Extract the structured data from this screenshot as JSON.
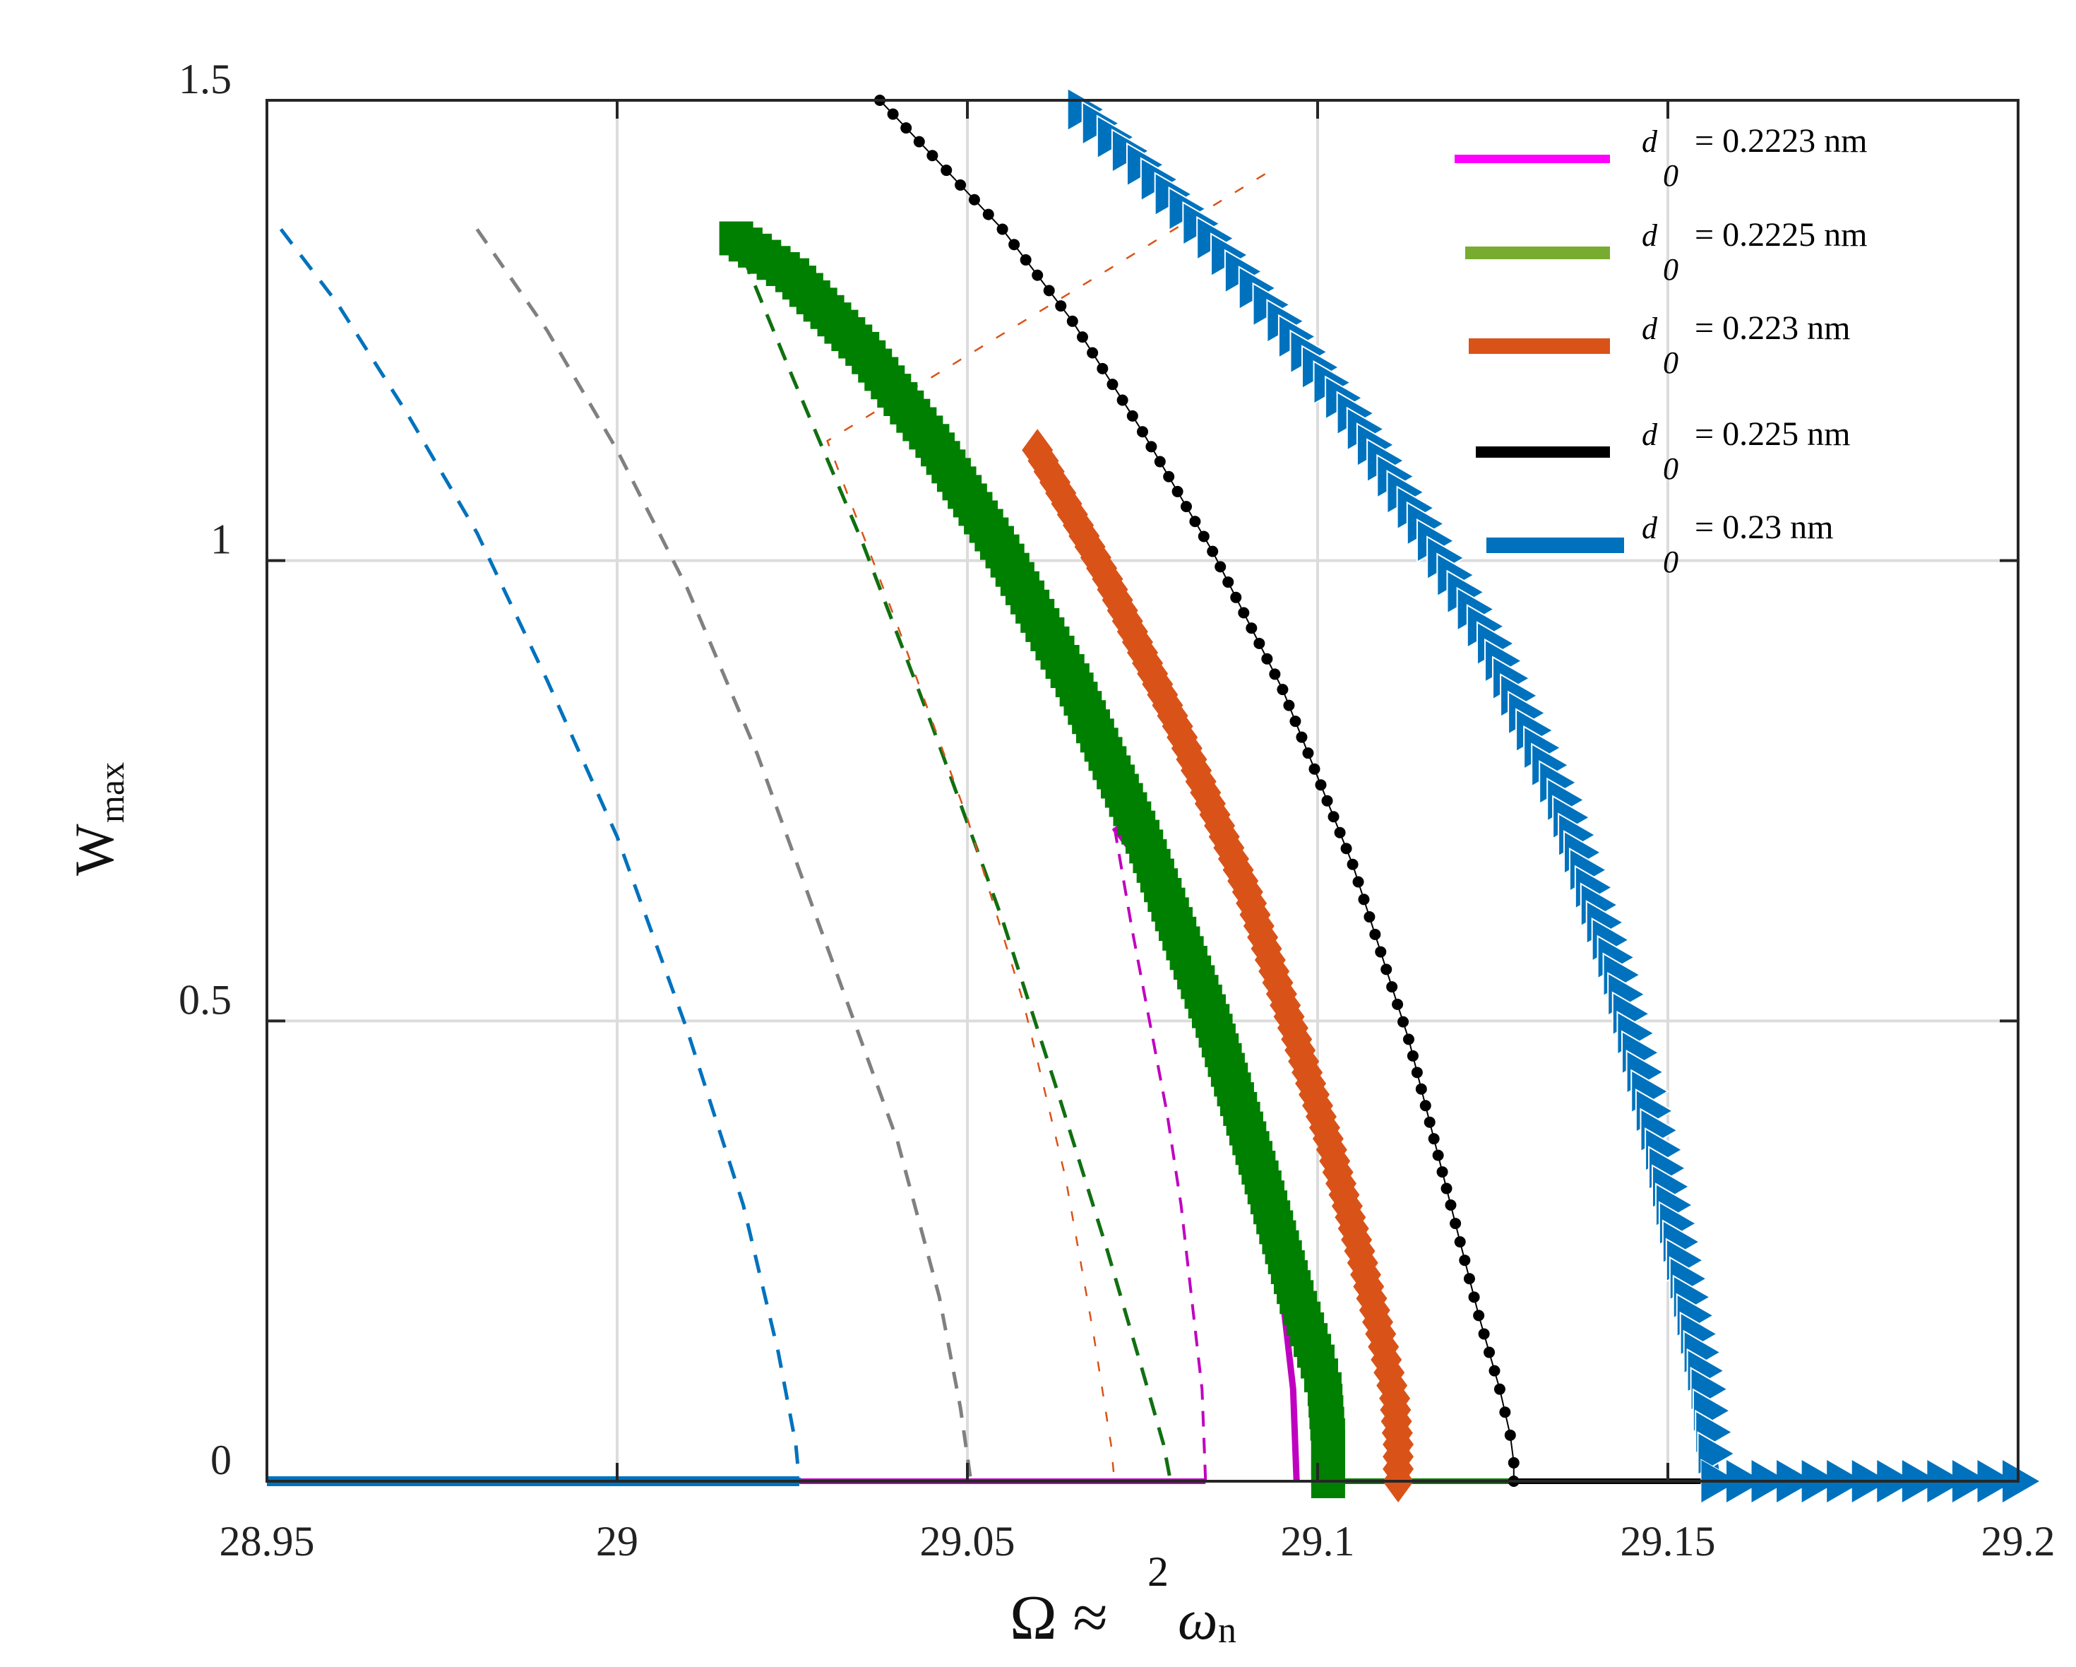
{
  "chart_data": {
    "type": "line",
    "xlim": [
      28.95,
      29.2
    ],
    "ylim": [
      0,
      1.5
    ],
    "grid": true,
    "legend_position": "top-right",
    "x_ticks": [
      "28.95",
      "29",
      "29.05",
      "29.1",
      "29.15",
      "29.2"
    ],
    "y_ticks": [
      "0",
      "0.5",
      "1",
      "1.5"
    ],
    "xlabel": {
      "main": "Ω ≈",
      "sup": "2",
      "omega": "ω",
      "sub": "n"
    },
    "ylabel": {
      "main": "W",
      "sub": "max"
    },
    "series": [
      {
        "name": "= 0.2223 nm",
        "color": "#c000c0",
        "legend_color": "#ff00ff",
        "marker": "none",
        "stable": [
          [
            29.071,
            0.71
          ],
          [
            29.074,
            0.68
          ],
          [
            29.078,
            0.63
          ],
          [
            29.082,
            0.57
          ],
          [
            29.086,
            0.5
          ],
          [
            29.09,
            0.4
          ],
          [
            29.093,
            0.3
          ],
          [
            29.095,
            0.2
          ],
          [
            29.0965,
            0.1
          ],
          [
            29.097,
            0.0
          ]
        ],
        "unstable": [
          [
            29.071,
            0.71
          ],
          [
            29.0735,
            0.6
          ],
          [
            29.076,
            0.5
          ],
          [
            29.0785,
            0.4
          ],
          [
            29.0805,
            0.3
          ],
          [
            29.082,
            0.2
          ],
          [
            29.0835,
            0.1
          ],
          [
            29.084,
            0.0
          ]
        ],
        "baseline": [
          [
            29.026,
            0.0
          ],
          [
            29.084,
            0.0
          ]
        ]
      },
      {
        "name": "= 0.2225 nm",
        "color": "#008000",
        "legend_color": "#77ac30",
        "marker": "square",
        "stable": [
          [
            29.017,
            1.35
          ],
          [
            29.025,
            1.31
          ],
          [
            29.035,
            1.23
          ],
          [
            29.045,
            1.13
          ],
          [
            29.055,
            1.01
          ],
          [
            29.065,
            0.87
          ],
          [
            29.075,
            0.7
          ],
          [
            29.085,
            0.5
          ],
          [
            29.092,
            0.33
          ],
          [
            29.097,
            0.2
          ],
          [
            29.1,
            0.13
          ],
          [
            29.101,
            0.1
          ],
          [
            29.1015,
            0.05
          ],
          [
            29.1015,
            0.0
          ]
        ],
        "unstable": [
          [
            29.018,
            1.33
          ],
          [
            29.025,
            1.2
          ],
          [
            29.035,
            1.02
          ],
          [
            29.045,
            0.82
          ],
          [
            29.055,
            0.61
          ],
          [
            29.063,
            0.42
          ],
          [
            29.07,
            0.25
          ],
          [
            29.075,
            0.12
          ],
          [
            29.078,
            0.04
          ],
          [
            29.079,
            0.0
          ]
        ],
        "baseline": [
          [
            29.1015,
            0.0
          ],
          [
            29.155,
            0.0
          ]
        ]
      },
      {
        "name": "= 0.223 nm",
        "color": "#d95319",
        "legend_color": "#d95319",
        "marker": "diamond",
        "stable": [
          [
            29.06,
            1.12
          ],
          [
            29.07,
            0.98
          ],
          [
            29.08,
            0.82
          ],
          [
            29.09,
            0.64
          ],
          [
            29.097,
            0.48
          ],
          [
            29.102,
            0.36
          ],
          [
            29.106,
            0.25
          ],
          [
            29.109,
            0.16
          ],
          [
            29.111,
            0.09
          ],
          [
            29.1115,
            0.04
          ],
          [
            29.1115,
            0.0
          ]
        ],
        "unstable": [
          [
            29.0925,
            1.42
          ],
          [
            29.03,
            1.13
          ],
          [
            29.04,
            0.93
          ],
          [
            29.05,
            0.72
          ],
          [
            29.058,
            0.52
          ],
          [
            29.064,
            0.33
          ],
          [
            29.068,
            0.16
          ],
          [
            29.0705,
            0.04
          ],
          [
            29.071,
            0.0
          ]
        ],
        "baseline": []
      },
      {
        "name": "= 0.225 nm",
        "color": "#000000",
        "legend_color": "#000000",
        "marker": "dot",
        "stable": [
          [
            29.0375,
            1.5
          ],
          [
            29.045,
            1.44
          ],
          [
            29.055,
            1.36
          ],
          [
            29.065,
            1.26
          ],
          [
            29.075,
            1.14
          ],
          [
            29.085,
            1.01
          ],
          [
            29.095,
            0.86
          ],
          [
            29.105,
            0.67
          ],
          [
            29.113,
            0.48
          ],
          [
            29.119,
            0.3
          ],
          [
            29.123,
            0.18
          ],
          [
            29.126,
            0.1
          ],
          [
            29.1275,
            0.05
          ],
          [
            29.128,
            0.02
          ],
          [
            29.128,
            0.0
          ]
        ],
        "unstable": [
          [
            28.98,
            1.36
          ],
          [
            28.99,
            1.25
          ],
          [
            29.0,
            1.12
          ],
          [
            29.01,
            0.97
          ],
          [
            29.02,
            0.79
          ],
          [
            29.03,
            0.58
          ],
          [
            29.04,
            0.37
          ],
          [
            29.046,
            0.2
          ],
          [
            29.049,
            0.08
          ],
          [
            29.0505,
            0.0
          ]
        ],
        "baseline": [
          [
            29.128,
            0.0
          ],
          [
            29.157,
            0.0
          ]
        ]
      },
      {
        "name": "= 0.23 nm",
        "color": "#0072bd",
        "legend_color": "#0072bd",
        "marker": "triangle",
        "stable": [
          [
            29.0665,
            1.49
          ],
          [
            29.075,
            1.43
          ],
          [
            29.085,
            1.35
          ],
          [
            29.095,
            1.26
          ],
          [
            29.105,
            1.16
          ],
          [
            29.115,
            1.04
          ],
          [
            29.125,
            0.91
          ],
          [
            29.135,
            0.74
          ],
          [
            29.143,
            0.55
          ],
          [
            29.149,
            0.36
          ],
          [
            29.153,
            0.2
          ],
          [
            29.1555,
            0.1
          ],
          [
            29.1565,
            0.03
          ],
          [
            29.157,
            0.0
          ]
        ],
        "unstable": [
          [
            28.952,
            1.36
          ],
          [
            28.96,
            1.28
          ],
          [
            28.97,
            1.16
          ],
          [
            28.98,
            1.03
          ],
          [
            28.99,
            0.87
          ],
          [
            29.0,
            0.7
          ],
          [
            29.01,
            0.49
          ],
          [
            29.018,
            0.3
          ],
          [
            29.023,
            0.14
          ],
          [
            29.0255,
            0.04
          ],
          [
            29.026,
            0.0
          ]
        ],
        "baseline": [
          [
            28.95,
            0.0
          ],
          [
            29.026,
            0.0
          ]
        ],
        "tail": [
          [
            29.157,
            0.0
          ],
          [
            29.2,
            0.0
          ]
        ]
      }
    ]
  },
  "legend": [
    {
      "symbol": "d",
      "sub": "0",
      "text": "= 0.2223 nm"
    },
    {
      "symbol": "d",
      "sub": "0",
      "text": "= 0.2225 nm"
    },
    {
      "symbol": "d",
      "sub": "0",
      "text": "= 0.223 nm"
    },
    {
      "symbol": "d",
      "sub": "0",
      "text": "= 0.225 nm"
    },
    {
      "symbol": "d",
      "sub": "0",
      "text": "= 0.23 nm"
    }
  ]
}
